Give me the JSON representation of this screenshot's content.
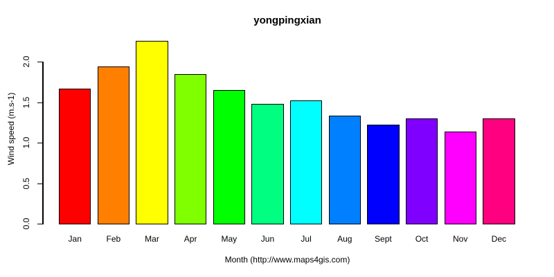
{
  "chart_data": {
    "type": "bar",
    "title": "yongpingxian",
    "xlabel": "Month (http://www.maps4gis.com)",
    "ylabel": "Wind speed (m.s-1)",
    "categories": [
      "Jan",
      "Feb",
      "Mar",
      "Apr",
      "May",
      "Jun",
      "Jul",
      "Aug",
      "Sept",
      "Oct",
      "Nov",
      "Dec"
    ],
    "values": [
      1.67,
      1.94,
      2.26,
      1.85,
      1.65,
      1.48,
      1.52,
      1.33,
      1.22,
      1.3,
      1.14,
      1.3
    ],
    "bar_colors": [
      "#FF0000",
      "#FF8000",
      "#FFFF00",
      "#80FF00",
      "#00FF00",
      "#00FF80",
      "#00FFFF",
      "#0080FF",
      "#0000FF",
      "#8000FF",
      "#FF00FF",
      "#FF0080"
    ],
    "bar_border_color": "#000000",
    "ylim": [
      0.0,
      2.26
    ],
    "yticks": [
      "0.0",
      "0.5",
      "1.0",
      "1.5",
      "2.0"
    ],
    "grid": false,
    "legend": "none",
    "background_color": "#FFFFFF",
    "axis_color": "#000000"
  }
}
